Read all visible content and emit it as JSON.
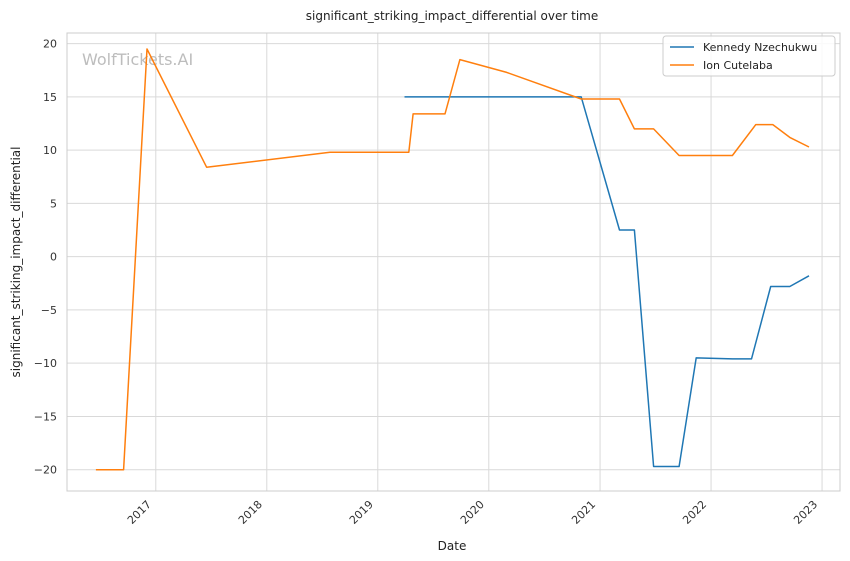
{
  "chart_data": {
    "type": "line",
    "title": "significant_striking_impact_differential over time",
    "xlabel": "Date",
    "ylabel": "significant_striking_impact_differential",
    "watermark": "WolfTickets.AI",
    "x_axis_type": "date",
    "xlim": [
      "2016-03-15",
      "2023-03-01"
    ],
    "ylim": [
      -22,
      21
    ],
    "x_ticks": [
      "2017",
      "2018",
      "2019",
      "2020",
      "2021",
      "2022",
      "2023"
    ],
    "y_ticks": [
      20,
      15,
      10,
      5,
      0,
      -5,
      -10,
      -15,
      -20
    ],
    "grid": true,
    "legend_position": "top-right",
    "series": [
      {
        "name": "Kennedy Nzechukwu",
        "color": "#1f77b4",
        "points": [
          {
            "x": "2019-03-30",
            "y": 15.0
          },
          {
            "x": "2020-10-31",
            "y": 15.0
          },
          {
            "x": "2021-03-06",
            "y": 2.5
          },
          {
            "x": "2021-04-24",
            "y": 2.5
          },
          {
            "x": "2021-06-26",
            "y": -19.7
          },
          {
            "x": "2021-09-18",
            "y": -19.7
          },
          {
            "x": "2021-11-13",
            "y": -9.5
          },
          {
            "x": "2022-03-12",
            "y": -9.6
          },
          {
            "x": "2022-05-14",
            "y": -9.6
          },
          {
            "x": "2022-07-16",
            "y": -2.8
          },
          {
            "x": "2022-09-17",
            "y": -2.8
          },
          {
            "x": "2022-11-19",
            "y": -1.8
          }
        ]
      },
      {
        "name": "Ion Cutelaba",
        "color": "#ff7f0e",
        "points": [
          {
            "x": "2016-06-18",
            "y": -20.0
          },
          {
            "x": "2016-09-17",
            "y": -20.0
          },
          {
            "x": "2016-12-03",
            "y": 19.5
          },
          {
            "x": "2017-06-17",
            "y": 8.4
          },
          {
            "x": "2018-07-28",
            "y": 9.8
          },
          {
            "x": "2019-04-13",
            "y": 9.8
          },
          {
            "x": "2019-04-27",
            "y": 13.4
          },
          {
            "x": "2019-08-10",
            "y": 13.4
          },
          {
            "x": "2019-09-28",
            "y": 18.5
          },
          {
            "x": "2020-02-29",
            "y": 17.3
          },
          {
            "x": "2020-10-31",
            "y": 14.8
          },
          {
            "x": "2021-03-06",
            "y": 14.8
          },
          {
            "x": "2021-04-24",
            "y": 12.0
          },
          {
            "x": "2021-06-26",
            "y": 12.0
          },
          {
            "x": "2021-09-18",
            "y": 9.5
          },
          {
            "x": "2022-03-12",
            "y": 9.5
          },
          {
            "x": "2022-05-28",
            "y": 12.4
          },
          {
            "x": "2022-07-23",
            "y": 12.4
          },
          {
            "x": "2022-09-17",
            "y": 11.2
          },
          {
            "x": "2022-11-19",
            "y": 10.3
          }
        ]
      }
    ]
  }
}
